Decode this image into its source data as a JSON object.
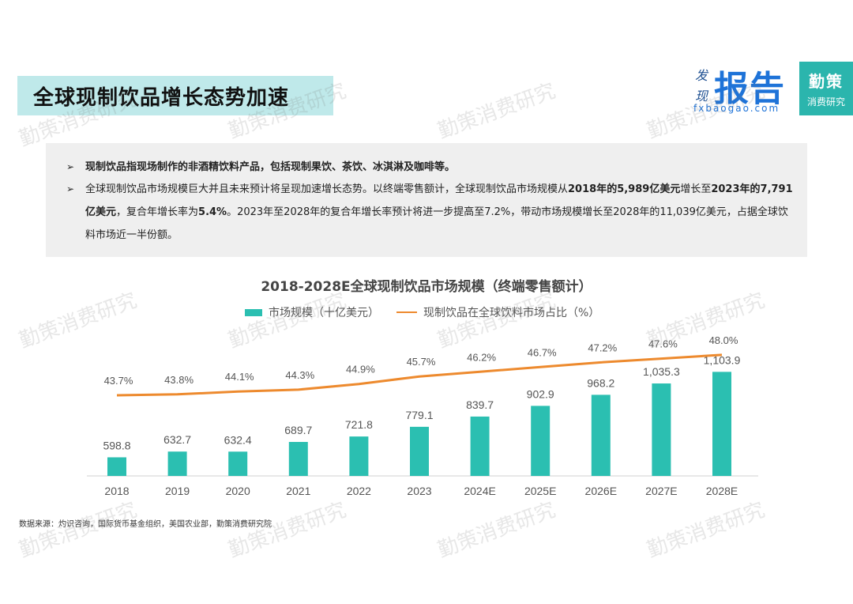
{
  "header": {
    "title": "全球现制饮品增长态势加速",
    "logo_fx": {
      "small_top": "发",
      "small_bottom": "现",
      "big": "报告",
      "url": "fxbaogao.com"
    },
    "logo_qc": {
      "line1": "勤策",
      "line2": "消费研究"
    }
  },
  "bullets": [
    {
      "arrow": "➢",
      "text": "现制饮品指现场制作的非酒精饮料产品，包括现制果饮、茶饮、冰淇淋及咖啡等。"
    },
    {
      "arrow": "➢",
      "parts": [
        {
          "text": "全球现制饮品市场规模巨大并且未来预计将呈现加速增长态势。以终端零售额计，全球现制饮品市场规模从",
          "bold": false
        },
        {
          "text": "2018年的5,989亿美元",
          "bold": true
        },
        {
          "text": "增长至",
          "bold": false
        },
        {
          "text": "2023年的7,791亿美元",
          "bold": true
        },
        {
          "text": "，复合年增长率为",
          "bold": false
        },
        {
          "text": "5.4%",
          "bold": true
        },
        {
          "text": "。2023年至2028年的复合年增长率预计将进一步提高至7.2%，带动市场规模增长至2028年的11,039亿美元，占据全球饮料市场近一半份额。",
          "bold": false
        }
      ]
    }
  ],
  "chart_data": {
    "type": "bar",
    "title": "2018-2028E全球现制饮品市场规模（终端零售额计）",
    "categories": [
      "2018",
      "2019",
      "2020",
      "2021",
      "2022",
      "2023",
      "2024E",
      "2025E",
      "2026E",
      "2027E",
      "2028E"
    ],
    "series": [
      {
        "name": "市场规模（十亿美元）",
        "type": "bar",
        "values": [
          598.8,
          632.7,
          632.4,
          689.7,
          721.8,
          779.1,
          839.7,
          902.9,
          968.2,
          1035.3,
          1103.9
        ],
        "labels": [
          "598.8",
          "632.7",
          "632.4",
          "689.7",
          "721.8",
          "779.1",
          "839.7",
          "902.9",
          "968.2",
          "1,035.3",
          "1,103.9"
        ],
        "color": "#2bbfb1"
      },
      {
        "name": "现制饮品在全球饮料市场占比（%）",
        "type": "line",
        "values": [
          43.7,
          43.8,
          44.1,
          44.3,
          44.9,
          45.7,
          46.2,
          46.7,
          47.2,
          47.6,
          48.0
        ],
        "labels": [
          "43.7%",
          "43.8%",
          "44.1%",
          "44.3%",
          "44.9%",
          "45.7%",
          "46.2%",
          "46.7%",
          "47.2%",
          "47.6%",
          "48.0%"
        ],
        "color": "#ed8a2e"
      }
    ],
    "legend": "top-center",
    "grid": false
  },
  "source": "数据来源：灼识咨询，国际货币基金组织，美国农业部，勤策消费研究院",
  "watermark": "勤策消费研究"
}
